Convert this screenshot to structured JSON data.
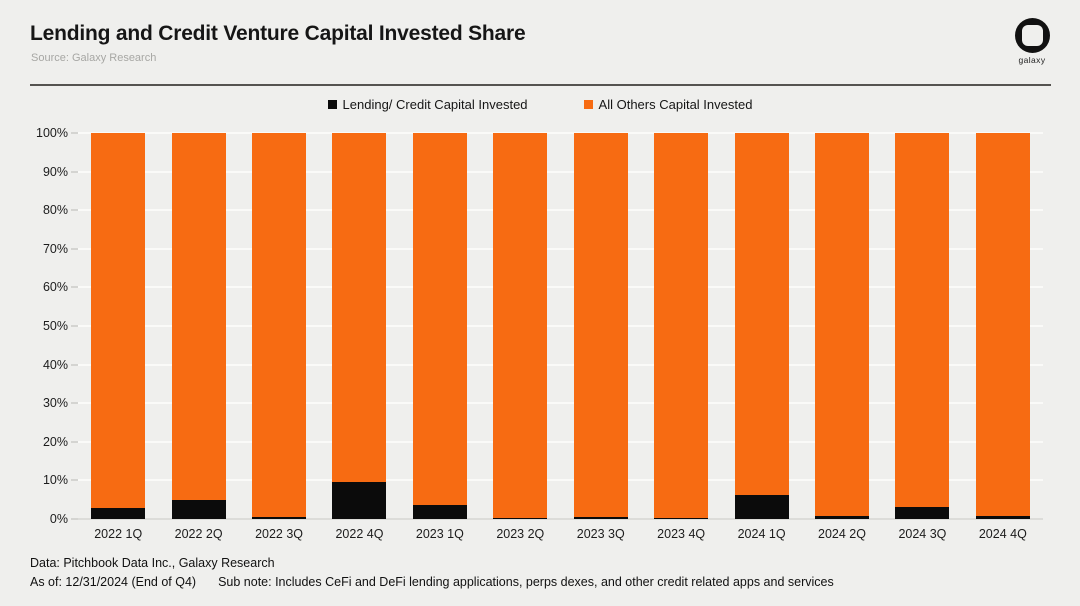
{
  "header": {
    "title": "Lending and Credit Venture Capital Invested Share",
    "source": "Source: Galaxy Research",
    "logo_text": "galaxy"
  },
  "colors": {
    "background": "#efefed",
    "lending_black": "#0b0b0b",
    "others_orange": "#f76b12",
    "divider": "#555350",
    "gridline": "#fafaf8"
  },
  "chart_data": {
    "type": "bar",
    "subtype": "stacked-100-percent",
    "categories": [
      "2022 1Q",
      "2022 2Q",
      "2022 3Q",
      "2022 4Q",
      "2023 1Q",
      "2023 2Q",
      "2023 3Q",
      "2023 4Q",
      "2024 1Q",
      "2024 2Q",
      "2024 3Q",
      "2024 4Q"
    ],
    "series": [
      {
        "name": "Lending/ Credit Capital Invested",
        "color": "#0b0b0b",
        "values": [
          2.8,
          5.0,
          0.5,
          9.5,
          3.6,
          0.3,
          0.5,
          0.3,
          6.2,
          0.7,
          3.0,
          0.7
        ]
      },
      {
        "name": "All Others Capital Invested",
        "color": "#f76b12",
        "values": [
          97.2,
          95.0,
          99.5,
          90.5,
          96.4,
          99.7,
          99.5,
          99.7,
          93.8,
          99.3,
          97.0,
          99.3
        ]
      }
    ],
    "title": "Lending and Credit Venture Capital Invested Share",
    "xlabel": "",
    "ylabel": "",
    "ylim": [
      0,
      100
    ],
    "yticks": [
      "100%",
      "90%",
      "80%",
      "70%",
      "60%",
      "50%",
      "40%",
      "30%",
      "20%",
      "10%",
      "0%"
    ],
    "grid": true,
    "legend_position": "top-center"
  },
  "footer": {
    "data_source": "Data: Pitchbook Data Inc., Galaxy Research",
    "as_of": "As of: 12/31/2024 (End of Q4)",
    "sub_note": "Sub note: Includes CeFi and DeFi lending applications, perps dexes, and other credit related apps and services"
  }
}
